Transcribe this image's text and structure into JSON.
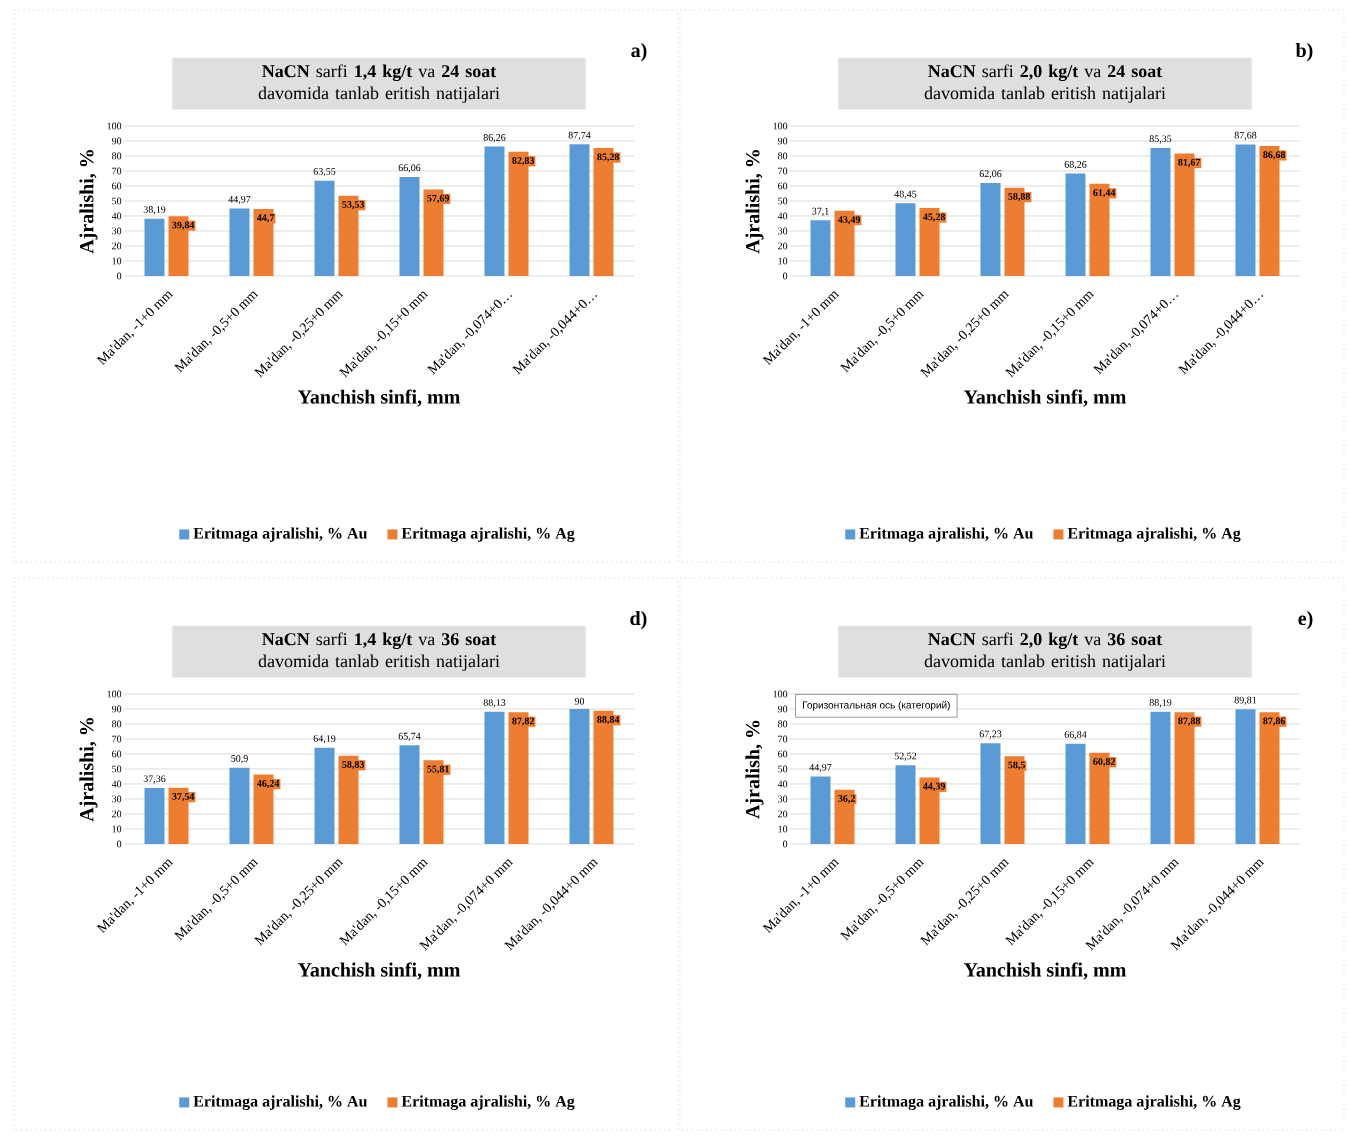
{
  "chart_data": [
    {
      "type": "bar",
      "title": "**NaCN** sarfi **1,4 kg/t** va **24 soat** davomida tanlab eritish natijalari",
      "xlabel": "Yanchish sinfi, mm",
      "ylabel": "Ajralishi, %",
      "categories": [
        "Ma'dan, -1+0 mm",
        "Ma'dan, -0,5+0 mm",
        "Ma'dan, -0,25+0 mm",
        "Ma'dan, -0,15+0 mm",
        "Ma'dan, -0,074+0…",
        "Ma'dan, -0,044+0…"
      ],
      "series": [
        {
          "name": "Eritmaga ajralishi, % Au",
          "color": "#5b9bd5",
          "values": [
            38.19,
            44.97,
            63.55,
            66.06,
            86.26,
            87.74
          ],
          "value_labels": [
            "38,19",
            "44,97",
            "63,55",
            "66,06",
            "86,26",
            "87,74"
          ]
        },
        {
          "name": "Eritmaga ajralishi, % Ag",
          "color": "#ed7d31",
          "values": [
            39.84,
            44.7,
            53.53,
            57.69,
            82.83,
            85.28
          ],
          "value_labels": [
            "39,84",
            "44,7",
            "53,53",
            "57,69",
            "82,83",
            "85,28"
          ]
        }
      ],
      "ylim": [
        0,
        100
      ],
      "yticks": [
        0,
        10,
        20,
        30,
        40,
        50,
        60,
        70,
        80,
        90,
        100
      ],
      "grid": "y",
      "legend": "bottom",
      "annotations": [
        "a)"
      ]
    },
    {
      "type": "bar",
      "title": "**NaCN** sarfi **2,0 kg/t** va **24 soat** davomida tanlab eritish natijalari",
      "xlabel": "Yanchish sinfi, mm",
      "ylabel": "Ajralishi, %",
      "categories": [
        "Ma'dan, -1+0 mm",
        "Ma'dan, -0,5+0 mm",
        "Ma'dan, -0,25+0 mm",
        "Ma'dan, -0,15+0 mm",
        "Ma'dan, -0,074+0…",
        "Ma'dan, -0,044+0…"
      ],
      "series": [
        {
          "name": "Eritmaga ajralishi, % Au",
          "color": "#5b9bd5",
          "values": [
            37.1,
            48.45,
            62.06,
            68.26,
            85.35,
            87.68
          ],
          "value_labels": [
            "37,1",
            "48,45",
            "62,06",
            "68,26",
            "85,35",
            "87,68"
          ]
        },
        {
          "name": "Eritmaga ajralishi, % Ag",
          "color": "#ed7d31",
          "values": [
            43.49,
            45.28,
            58.88,
            61.44,
            81.67,
            86.68
          ],
          "value_labels": [
            "43,49",
            "45,28",
            "58,88",
            "61,44",
            "81,67",
            "86,68"
          ]
        }
      ],
      "ylim": [
        0,
        100
      ],
      "yticks": [
        0,
        10,
        20,
        30,
        40,
        50,
        60,
        70,
        80,
        90,
        100
      ],
      "grid": "y",
      "legend": "bottom",
      "annotations": [
        "b)"
      ]
    },
    {
      "type": "bar",
      "title": "**NaCN** sarfi **1,4 kg/t** va **36 soat** davomida tanlab eritish natijalari",
      "xlabel": "Yanchish sinfi, mm",
      "ylabel": "Ajralishi, %",
      "categories": [
        "Ma'dan, -1+0 mm",
        "Ma'dan, -0,5+0 mm",
        "Ma'dan, -0,25+0 mm",
        "Ma'dan, -0,15+0 mm",
        "Ma'dan, -0,074+0 mm",
        "Ma'dan, -0,044+0 mm"
      ],
      "series": [
        {
          "name": "Eritmaga ajralishi, % Au",
          "color": "#5b9bd5",
          "values": [
            37.36,
            50.9,
            64.19,
            65.74,
            88.13,
            90
          ],
          "value_labels": [
            "37,36",
            "50,9",
            "64,19",
            "65,74",
            "88,13",
            "90"
          ]
        },
        {
          "name": "Eritmaga ajralishi, % Ag",
          "color": "#ed7d31",
          "values": [
            37.54,
            46.24,
            58.83,
            55.81,
            87.82,
            88.84
          ],
          "value_labels": [
            "37,54",
            "46,24",
            "58,83",
            "55,81",
            "87,82",
            "88,84"
          ]
        }
      ],
      "ylim": [
        0,
        100
      ],
      "yticks": [
        0,
        10,
        20,
        30,
        40,
        50,
        60,
        70,
        80,
        90,
        100
      ],
      "grid": "y",
      "legend": "bottom",
      "annotations": [
        "d)"
      ]
    },
    {
      "type": "bar",
      "title": "**NaCN** sarfi **2,0 kg/t** va **36 soat** davomida tanlab eritish natijalari",
      "xlabel": "Yanchish sinfi, mm",
      "ylabel": "Ajralish, %",
      "categories": [
        "Ma'dan, -1+0 mm",
        "Ma'dan, -0,5+0 mm",
        "Ma'dan, -0,25+0 mm",
        "Ma'dan, -0,15+0 mm",
        "Ma'dan, -0,074+0 mm",
        "Ma'dan, -0,044+0 mm"
      ],
      "series": [
        {
          "name": "Eritmaga ajralishi, % Au",
          "color": "#5b9bd5",
          "values": [
            44.97,
            52.52,
            67.23,
            66.84,
            88.19,
            89.81
          ],
          "value_labels": [
            "44,97",
            "52,52",
            "67,23",
            "66,84",
            "88,19",
            "89,81"
          ]
        },
        {
          "name": "Eritmaga ajralishi, % Ag",
          "color": "#ed7d31",
          "values": [
            36.2,
            44.39,
            58.5,
            60.82,
            87.88,
            87.86
          ],
          "value_labels": [
            "36,2",
            "44,39",
            "58,5",
            "60,82",
            "87,88",
            "87,86"
          ]
        }
      ],
      "ylim": [
        0,
        100
      ],
      "yticks": [
        0,
        10,
        20,
        30,
        40,
        50,
        60,
        70,
        80,
        90,
        100
      ],
      "grid": "y",
      "legend": "bottom",
      "annotations": [
        "e)",
        "Горизонтальная ось (категорий)"
      ]
    }
  ]
}
